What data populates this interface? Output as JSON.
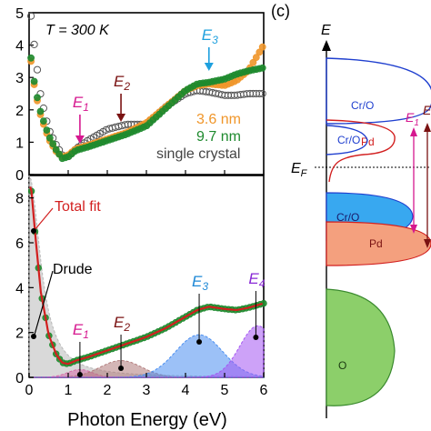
{
  "chart_data": [
    {
      "type": "scatter",
      "panel": "top",
      "annotation_T": "T = 300 K",
      "xlim": [
        0,
        6
      ],
      "ylim": [
        0,
        5
      ],
      "yticks": [
        "0",
        "1",
        "2",
        "3",
        "4",
        "5"
      ],
      "peak_labels": [
        {
          "main": "E",
          "sub": "1",
          "x": 1.3,
          "color": "#d6188f"
        },
        {
          "main": "E",
          "sub": "2",
          "x": 2.35,
          "color": "#7a1212"
        },
        {
          "main": "E",
          "sub": "3",
          "x": 4.6,
          "color": "#1ea0de"
        }
      ],
      "series": [
        {
          "name": "3.6 nm",
          "color": "#f0962a",
          "x": [
            0.05,
            0.15,
            0.3,
            0.5,
            0.7,
            0.85,
            1.0,
            1.2,
            1.5,
            2.0,
            2.5,
            3.0,
            3.5,
            4.0,
            4.3,
            4.6,
            5.0,
            5.3,
            5.6,
            5.8,
            6.0
          ],
          "y": [
            3.5,
            2.6,
            1.8,
            1.1,
            0.7,
            0.55,
            0.6,
            0.8,
            0.9,
            1.1,
            1.3,
            1.6,
            2.1,
            2.6,
            2.75,
            2.8,
            2.75,
            2.9,
            3.2,
            3.6,
            4.0
          ]
        },
        {
          "name": "9.7 nm",
          "color": "#1e8a2e",
          "x": [
            0.05,
            0.15,
            0.3,
            0.5,
            0.7,
            0.85,
            1.0,
            1.2,
            1.5,
            2.0,
            2.5,
            3.0,
            3.5,
            4.0,
            4.3,
            4.6,
            5.0,
            5.3,
            5.6,
            5.8,
            6.0
          ],
          "y": [
            3.6,
            2.7,
            1.9,
            1.2,
            0.75,
            0.5,
            0.55,
            0.75,
            0.85,
            1.05,
            1.25,
            1.5,
            2.05,
            2.6,
            2.8,
            2.85,
            2.95,
            3.1,
            3.2,
            3.25,
            3.3
          ]
        },
        {
          "name": "single crystal",
          "color": "#555555",
          "x": [
            0.05,
            0.15,
            0.3,
            0.5,
            0.7,
            0.85,
            1.0,
            1.2,
            1.5,
            2.0,
            2.5,
            3.0,
            3.5,
            4.0,
            4.3,
            4.6,
            5.0,
            5.3,
            5.6,
            5.8,
            6.0
          ],
          "y": [
            4.9,
            3.8,
            2.4,
            1.4,
            0.9,
            0.6,
            0.55,
            0.8,
            1.05,
            1.4,
            1.55,
            1.55,
            2.1,
            2.5,
            2.6,
            2.55,
            2.45,
            2.45,
            2.5,
            2.5,
            2.5
          ]
        }
      ]
    },
    {
      "type": "area",
      "panel": "bottom",
      "xlabel": "Photon Energy (eV)",
      "xlim": [
        0,
        6
      ],
      "ylim": [
        0,
        9
      ],
      "xticks": [
        "0",
        "1",
        "2",
        "3",
        "4",
        "5",
        "6"
      ],
      "yticks": [
        "0",
        "2",
        "4",
        "6",
        "8"
      ],
      "annotations": {
        "total_fit": "Total fit",
        "drude": "Drude"
      },
      "peak_labels": [
        {
          "main": "E",
          "sub": "1",
          "x": 1.3,
          "color": "#d6188f"
        },
        {
          "main": "E",
          "sub": "2",
          "x": 2.35,
          "color": "#7a1212"
        },
        {
          "main": "E",
          "sub": "3",
          "x": 4.35,
          "color": "#1e88d6"
        },
        {
          "main": "E",
          "sub": "4",
          "x": 5.8,
          "color": "#8a2ad6"
        }
      ],
      "data": {
        "x": [
          0.05,
          0.15,
          0.3,
          0.5,
          0.7,
          0.85,
          1.0,
          1.2,
          1.5,
          2.0,
          2.5,
          3.0,
          3.5,
          4.0,
          4.3,
          4.6,
          5.0,
          5.3,
          5.6,
          5.8,
          6.0
        ],
        "y": [
          8.5,
          6.5,
          3.8,
          1.9,
          1.0,
          0.65,
          0.6,
          0.75,
          0.9,
          1.2,
          1.5,
          1.8,
          2.2,
          2.7,
          3.0,
          3.15,
          3.05,
          3.0,
          3.1,
          3.2,
          3.3
        ]
      },
      "components": [
        {
          "name": "Drude",
          "center": 0.0,
          "width": 0.35,
          "amp": 9.0,
          "color": "#b9b9b9"
        },
        {
          "name": "E1",
          "center": 1.3,
          "width": 0.45,
          "amp": 0.35,
          "color": "#d66aa8"
        },
        {
          "name": "E2",
          "center": 2.35,
          "width": 0.75,
          "amp": 0.75,
          "color": "#b07a7a"
        },
        {
          "name": "E3",
          "center": 4.35,
          "width": 0.85,
          "amp": 1.9,
          "color": "#4a8ef0"
        },
        {
          "name": "E4",
          "center": 5.85,
          "width": 0.65,
          "amp": 2.3,
          "color": "#a455f2"
        }
      ]
    }
  ],
  "diagram": {
    "panel_label": "(c)",
    "energy_axis_label": "E",
    "fermi_label": "E",
    "fermi_sub": "F",
    "bands": [
      {
        "label": "Cr/O",
        "color": "#1f3fcf"
      },
      {
        "label": "Pd",
        "color": "#d21f1f"
      },
      {
        "label": "Cr/O",
        "color": "#1f3fcf"
      },
      {
        "label": "Cr/O",
        "color": "#1a9be8"
      },
      {
        "label": "Pd",
        "color": "#f08a5c"
      },
      {
        "label": "O",
        "color": "#8ccf6a"
      }
    ],
    "transition_labels": [
      {
        "main": "E",
        "sub": "1",
        "color": "#d6188f"
      },
      {
        "main": "E",
        "sub": "",
        "color": "#7a1212"
      }
    ]
  }
}
